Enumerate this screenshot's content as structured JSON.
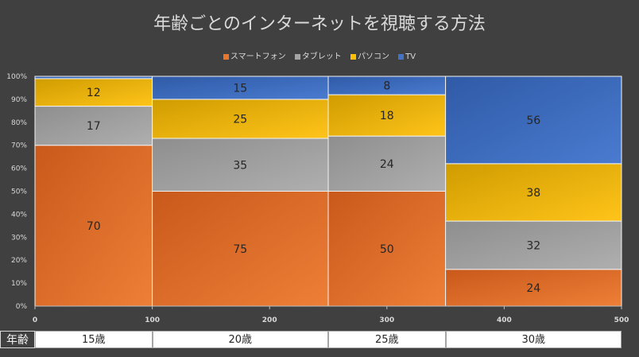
{
  "chart_data": {
    "type": "mekko",
    "title": "年齢ごとのインターネットを視聴する方法",
    "legend_position": "top",
    "series_names": [
      "スマートフォン",
      "タブレット",
      "パソコン",
      "TV"
    ],
    "series_colors": [
      "#e8762d",
      "#a5a5a5",
      "#ffc000",
      "#4472c4"
    ],
    "x_ticks": [
      "0",
      "100",
      "200",
      "300",
      "400",
      "500"
    ],
    "y_ticks": [
      "0%",
      "10%",
      "20%",
      "30%",
      "40%",
      "50%",
      "60%",
      "70%",
      "80%",
      "90%",
      "100%"
    ],
    "xlim": [
      0,
      500
    ],
    "ylim": [
      0,
      100
    ],
    "grid": true,
    "columns": [
      {
        "category": "15歳",
        "x_start": 0,
        "x_end": 100,
        "values": [
          70,
          17,
          12,
          1
        ],
        "labels": [
          "70",
          "17",
          "12",
          ""
        ]
      },
      {
        "category": "20歳",
        "x_start": 100,
        "x_end": 250,
        "values": [
          50,
          23,
          17,
          10
        ],
        "labels": [
          "75",
          "35",
          "25",
          "15"
        ]
      },
      {
        "category": "25歳",
        "x_start": 250,
        "x_end": 350,
        "values": [
          50,
          24,
          18,
          8
        ],
        "labels": [
          "50",
          "24",
          "18",
          "8"
        ]
      },
      {
        "category": "30歳",
        "x_start": 350,
        "x_end": 500,
        "values": [
          16,
          21,
          25,
          38
        ],
        "labels": [
          "24",
          "32",
          "38",
          "56"
        ]
      }
    ]
  },
  "age_table": {
    "header": "年齢"
  }
}
